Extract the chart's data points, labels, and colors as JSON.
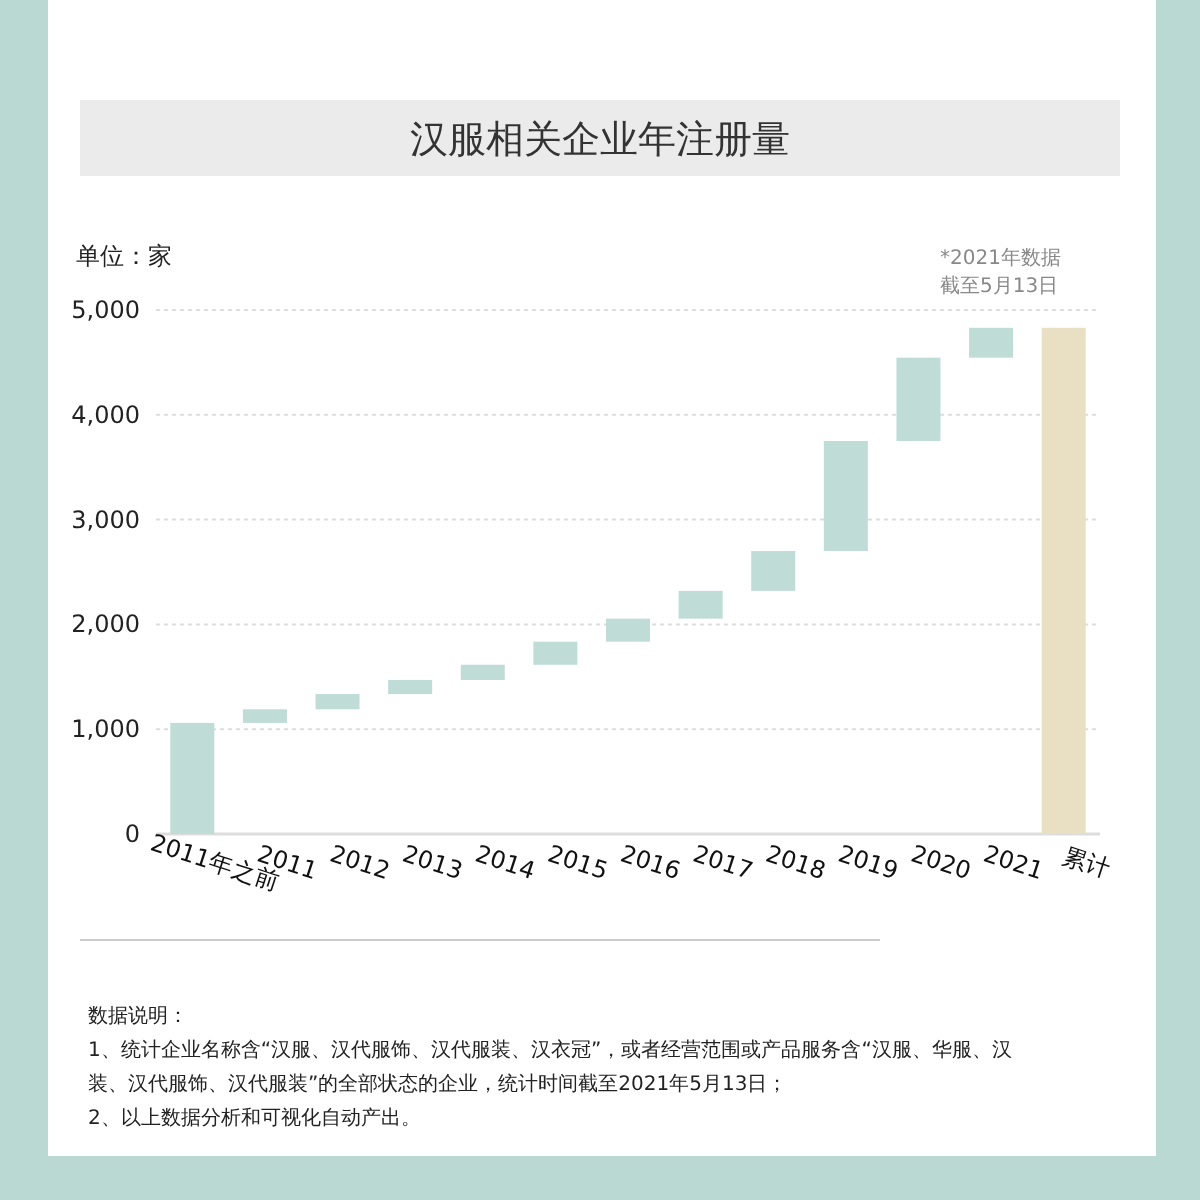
{
  "chart_data": {
    "type": "bar",
    "title": "汉服相关企业年注册量",
    "ylabel": "单位：家",
    "categories": [
      "2011年之前",
      "2011",
      "2012",
      "2013",
      "2014",
      "2015",
      "2016",
      "2017",
      "2018",
      "2019",
      "2020",
      "2021",
      "累计"
    ],
    "values": [
      1060,
      130,
      145,
      135,
      145,
      220,
      220,
      265,
      380,
      1050,
      795,
      285,
      4830
    ],
    "base": [
      0,
      1060,
      1190,
      1335,
      1470,
      1615,
      1835,
      2055,
      2320,
      2700,
      3750,
      4545,
      0
    ],
    "colors": [
      "#bfdcd6",
      "#bfdcd6",
      "#bfdcd6",
      "#bfdcd6",
      "#bfdcd6",
      "#bfdcd6",
      "#bfdcd6",
      "#bfdcd6",
      "#bfdcd6",
      "#bfdcd6",
      "#bfdcd6",
      "#bfdcd6",
      "#e9dfc2"
    ],
    "ylim": [
      0,
      5000
    ],
    "yticks": [
      0,
      {
        "value": 1000,
        "label": "1,000"
      },
      {
        "value": 2000,
        "label": "2,000"
      },
      {
        "value": 3000,
        "label": "3,000"
      },
      {
        "value": 4000,
        "label": "4,000"
      },
      {
        "value": 5000,
        "label": "5,000"
      }
    ],
    "grid": "y",
    "annotations": [
      "*2021年数据",
      "截至5月13日",
      "数据说明：",
      "1、统计企业名称含“汉服、汉代服饰、汉代服装、汉衣冠”，或者经营范围或产品服务含“汉服、华服、汉装、汉代服饰、汉代服装”的全部状态的企业，统计时间截至2021年5月13日；",
      "2、以上数据分析和可视化自动产出。"
    ]
  }
}
